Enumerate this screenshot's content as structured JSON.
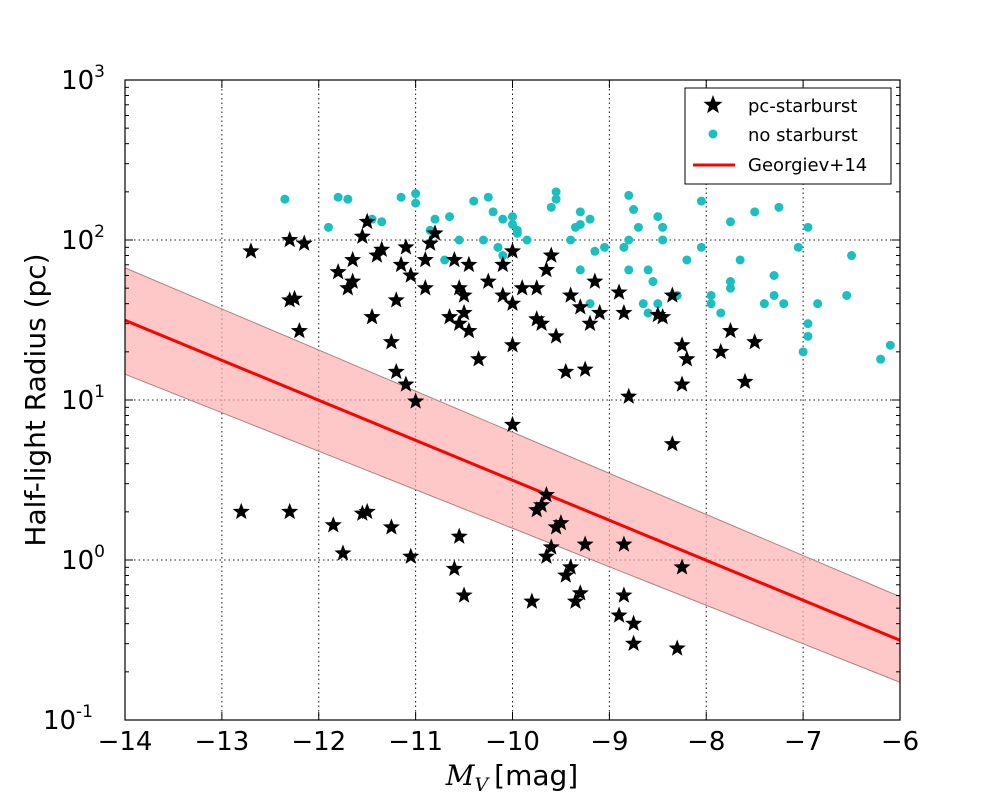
{
  "chart_data": {
    "type": "scatter",
    "title": "",
    "xlabel_main": "M",
    "xlabel_sub": "V",
    "xlabel_unit": "[mag]",
    "ylabel": "Half-light Radius (pc)",
    "xlim": [
      -14,
      -6
    ],
    "ylim_log10": [
      -1,
      3
    ],
    "yscale": "log",
    "grid": true,
    "legend_position": "top-right",
    "x_ticks": [
      {
        "value": -14,
        "label": "−14"
      },
      {
        "value": -13,
        "label": "−13"
      },
      {
        "value": -12,
        "label": "−12"
      },
      {
        "value": -11,
        "label": "−11"
      },
      {
        "value": -10,
        "label": "−10"
      },
      {
        "value": -9,
        "label": "−9"
      },
      {
        "value": -8,
        "label": "−8"
      },
      {
        "value": -7,
        "label": "−7"
      },
      {
        "value": -6,
        "label": "−6"
      }
    ],
    "y_ticks": [
      {
        "exp": -1,
        "base": "10",
        "sup": "-1"
      },
      {
        "exp": 0,
        "base": "10",
        "sup": "0"
      },
      {
        "exp": 1,
        "base": "10",
        "sup": "1"
      },
      {
        "exp": 2,
        "base": "10",
        "sup": "2"
      },
      {
        "exp": 3,
        "base": "10",
        "sup": "3"
      }
    ],
    "series": [
      {
        "name": "no starburst",
        "marker": "circle",
        "color": "#1abfbf",
        "points": [
          [
            -12.35,
            180
          ],
          [
            -11.8,
            185
          ],
          [
            -11.7,
            180
          ],
          [
            -11.9,
            120
          ],
          [
            -11.45,
            135
          ],
          [
            -11.35,
            130
          ],
          [
            -11.15,
            185
          ],
          [
            -11.0,
            170
          ],
          [
            -11.0,
            195
          ],
          [
            -10.85,
            115
          ],
          [
            -10.8,
            135
          ],
          [
            -10.65,
            140
          ],
          [
            -10.55,
            100
          ],
          [
            -10.7,
            75
          ],
          [
            -10.4,
            175
          ],
          [
            -10.2,
            150
          ],
          [
            -10.25,
            185
          ],
          [
            -10.15,
            90
          ],
          [
            -10.1,
            135
          ],
          [
            -10.0,
            125
          ],
          [
            -10.0,
            140
          ],
          [
            -9.95,
            115
          ],
          [
            -10.3,
            100
          ],
          [
            -10.1,
            80
          ],
          [
            -9.95,
            110
          ],
          [
            -9.85,
            100
          ],
          [
            -9.6,
            160
          ],
          [
            -9.55,
            200
          ],
          [
            -9.55,
            180
          ],
          [
            -9.4,
            100
          ],
          [
            -9.3,
            125
          ],
          [
            -9.2,
            135
          ],
          [
            -9.3,
            150
          ],
          [
            -9.35,
            120
          ],
          [
            -9.3,
            65
          ],
          [
            -9.15,
            85
          ],
          [
            -9.05,
            90
          ],
          [
            -9.2,
            40
          ],
          [
            -8.85,
            90
          ],
          [
            -8.8,
            190
          ],
          [
            -8.75,
            155
          ],
          [
            -8.8,
            100
          ],
          [
            -8.7,
            120
          ],
          [
            -8.8,
            65
          ],
          [
            -8.65,
            40
          ],
          [
            -8.6,
            65
          ],
          [
            -8.55,
            55
          ],
          [
            -8.5,
            140
          ],
          [
            -8.45,
            100
          ],
          [
            -8.45,
            120
          ],
          [
            -8.5,
            40
          ],
          [
            -8.6,
            35
          ],
          [
            -8.3,
            45
          ],
          [
            -8.2,
            75
          ],
          [
            -8.05,
            175
          ],
          [
            -8.05,
            90
          ],
          [
            -7.95,
            40
          ],
          [
            -7.95,
            45
          ],
          [
            -7.85,
            35
          ],
          [
            -7.75,
            50
          ],
          [
            -7.75,
            55
          ],
          [
            -7.75,
            130
          ],
          [
            -7.65,
            75
          ],
          [
            -7.5,
            150
          ],
          [
            -7.4,
            40
          ],
          [
            -7.3,
            45
          ],
          [
            -7.3,
            60
          ],
          [
            -7.25,
            160
          ],
          [
            -7.2,
            40
          ],
          [
            -7.05,
            90
          ],
          [
            -6.95,
            120
          ],
          [
            -6.95,
            30
          ],
          [
            -6.95,
            25
          ],
          [
            -6.85,
            40
          ],
          [
            -6.55,
            45
          ],
          [
            -6.5,
            80
          ],
          [
            -7.0,
            20
          ],
          [
            -6.2,
            18
          ],
          [
            -6.1,
            22
          ]
        ]
      },
      {
        "name": "pc-starburst",
        "marker": "star",
        "color": "#000000",
        "points": [
          [
            -12.7,
            85
          ],
          [
            -12.3,
            42
          ],
          [
            -12.25,
            43
          ],
          [
            -12.3,
            100
          ],
          [
            -12.2,
            27
          ],
          [
            -12.15,
            95
          ],
          [
            -11.8,
            63
          ],
          [
            -11.7,
            50
          ],
          [
            -11.65,
            55
          ],
          [
            -11.65,
            75
          ],
          [
            -11.55,
            105
          ],
          [
            -11.5,
            130
          ],
          [
            -11.45,
            33
          ],
          [
            -11.4,
            80
          ],
          [
            -11.35,
            87
          ],
          [
            -11.25,
            23
          ],
          [
            -11.2,
            42
          ],
          [
            -11.2,
            15
          ],
          [
            -11.15,
            70
          ],
          [
            -11.1,
            90
          ],
          [
            -11.1,
            12.5
          ],
          [
            -11.05,
            60
          ],
          [
            -11.0,
            9.8
          ],
          [
            -10.9,
            50
          ],
          [
            -10.9,
            75
          ],
          [
            -10.85,
            95
          ],
          [
            -10.8,
            110
          ],
          [
            -10.65,
            33
          ],
          [
            -10.6,
            75
          ],
          [
            -10.55,
            30
          ],
          [
            -10.55,
            50
          ],
          [
            -10.5,
            35
          ],
          [
            -10.5,
            45
          ],
          [
            -10.45,
            27
          ],
          [
            -10.45,
            70
          ],
          [
            -10.35,
            18
          ],
          [
            -10.25,
            55
          ],
          [
            -10.1,
            45
          ],
          [
            -10.1,
            70
          ],
          [
            -10.0,
            22
          ],
          [
            -10.0,
            40
          ],
          [
            -10.0,
            85
          ],
          [
            -9.9,
            50
          ],
          [
            -9.75,
            50
          ],
          [
            -9.75,
            32
          ],
          [
            -9.7,
            30
          ],
          [
            -9.65,
            65
          ],
          [
            -9.6,
            80
          ],
          [
            -9.55,
            25
          ],
          [
            -9.45,
            15
          ],
          [
            -9.4,
            45
          ],
          [
            -9.3,
            38
          ],
          [
            -9.2,
            30
          ],
          [
            -9.25,
            15.5
          ],
          [
            -9.15,
            55
          ],
          [
            -9.1,
            35
          ],
          [
            -8.9,
            47
          ],
          [
            -8.85,
            35
          ],
          [
            -8.8,
            10.5
          ],
          [
            -8.5,
            34
          ],
          [
            -8.45,
            33
          ],
          [
            -8.35,
            45
          ],
          [
            -8.25,
            22
          ],
          [
            -8.2,
            18
          ],
          [
            -8.25,
            12.5
          ],
          [
            -7.85,
            20
          ],
          [
            -7.75,
            27
          ],
          [
            -7.6,
            13
          ],
          [
            -7.5,
            23
          ],
          [
            -10.0,
            7
          ],
          [
            -8.35,
            5.3
          ],
          [
            -12.8,
            2.0
          ],
          [
            -12.3,
            2.0
          ],
          [
            -11.85,
            1.65
          ],
          [
            -11.75,
            1.1
          ],
          [
            -11.55,
            1.95
          ],
          [
            -11.5,
            2.0
          ],
          [
            -11.25,
            1.6
          ],
          [
            -11.05,
            1.05
          ],
          [
            -10.6,
            0.88
          ],
          [
            -10.55,
            1.4
          ],
          [
            -10.5,
            0.6
          ],
          [
            -9.8,
            0.55
          ],
          [
            -9.75,
            2.05
          ],
          [
            -9.7,
            2.2
          ],
          [
            -9.65,
            2.55
          ],
          [
            -9.6,
            1.2
          ],
          [
            -9.65,
            1.05
          ],
          [
            -9.55,
            1.6
          ],
          [
            -9.5,
            1.7
          ],
          [
            -9.45,
            0.8
          ],
          [
            -9.4,
            0.9
          ],
          [
            -9.35,
            0.55
          ],
          [
            -9.3,
            0.62
          ],
          [
            -9.25,
            1.25
          ],
          [
            -8.9,
            0.45
          ],
          [
            -8.85,
            0.6
          ],
          [
            -8.85,
            1.25
          ],
          [
            -8.75,
            0.4
          ],
          [
            -8.75,
            0.3
          ],
          [
            -8.3,
            0.28
          ],
          [
            -8.25,
            0.9
          ]
        ]
      }
    ],
    "fit_line": {
      "name": "Georgiev+14",
      "color": "#ff0000",
      "x": [
        -14,
        -6
      ],
      "y": [
        31.5,
        0.315
      ],
      "band_lower": [
        14.5,
        0.172
      ],
      "band_upper": [
        67,
        0.59
      ],
      "band_color": "#ffb0b0"
    },
    "legend": [
      {
        "label": "pc-starburst",
        "marker": "star"
      },
      {
        "label": "no starburst",
        "marker": "circle"
      },
      {
        "label": "Georgiev+14",
        "marker": "line"
      }
    ]
  }
}
